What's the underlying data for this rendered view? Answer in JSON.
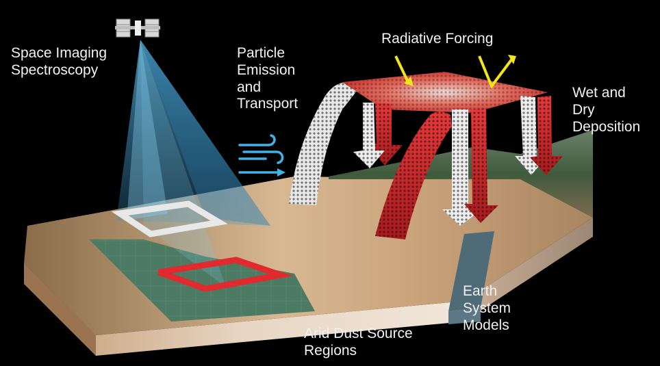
{
  "labels": {
    "space_imaging": [
      "Space Imaging",
      "Spectroscopy"
    ],
    "particle": [
      "Particle",
      "Emission",
      "and",
      "Transport"
    ],
    "radiative": [
      "Radiative Forcing"
    ],
    "deposition": [
      "Wet and",
      "Dry",
      "Deposition"
    ],
    "earth_models": [
      "Earth",
      "System",
      "Models"
    ],
    "arid": [
      "Arid Dust Source",
      "Regions"
    ]
  },
  "colors": {
    "background": "#000000",
    "text": "#f2f2f2",
    "beam": "#4aa9d8",
    "plume_red": "#d9292b",
    "plume_white": "#e8e8e8",
    "forcing_arrow": "#f2e51a",
    "wind_icon": "#3fb3e6",
    "sand": "#d9b48a",
    "earth_model_strip": "#4f6b78"
  },
  "icons": {
    "satellite": "satellite-icon",
    "wind": "wind-icon"
  }
}
